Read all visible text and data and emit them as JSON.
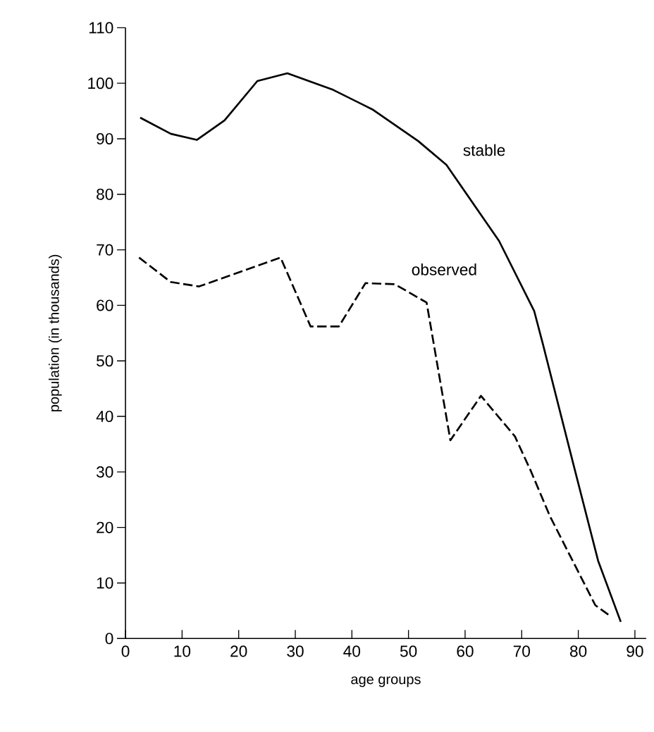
{
  "chart_data": {
    "type": "line",
    "xlabel": "age groups",
    "ylabel": "population (in thousands)",
    "xlim": [
      0,
      92
    ],
    "ylim": [
      0,
      110
    ],
    "xticks": [
      0,
      10,
      20,
      30,
      40,
      50,
      60,
      70,
      80,
      90
    ],
    "yticks": [
      0,
      10,
      20,
      30,
      40,
      50,
      60,
      70,
      80,
      90,
      100,
      110
    ],
    "grid": false,
    "legend": false,
    "marker": "none",
    "series": [
      {
        "name": "stable",
        "color": "#000000",
        "line_style": "solid",
        "x": [
          2.6,
          8,
          12.6,
          17.5,
          23.3,
          28.6,
          36.7,
          43.6,
          51.7,
          56.7,
          66,
          72.2,
          73.8,
          79.2,
          83.5,
          87.5
        ],
        "values": [
          93.8,
          90.9,
          89.8,
          93.3,
          100.4,
          101.8,
          98.8,
          95.3,
          89.6,
          85.3,
          71.6,
          59,
          52.8,
          31.1,
          14,
          3
        ]
      },
      {
        "name": "observed",
        "color": "#000000",
        "line_style": "dashed",
        "x": [
          2.4,
          8,
          13,
          27.4,
          32.7,
          37.7,
          42.4,
          47.6,
          53.2,
          57.4,
          62.8,
          68.8,
          71.6,
          75,
          80,
          83,
          85.7
        ],
        "values": [
          68.6,
          64.2,
          63.4,
          68.6,
          56.2,
          56.2,
          64,
          63.8,
          60.5,
          35.7,
          43.7,
          36.4,
          30.2,
          22,
          12,
          6,
          4
        ]
      }
    ]
  }
}
